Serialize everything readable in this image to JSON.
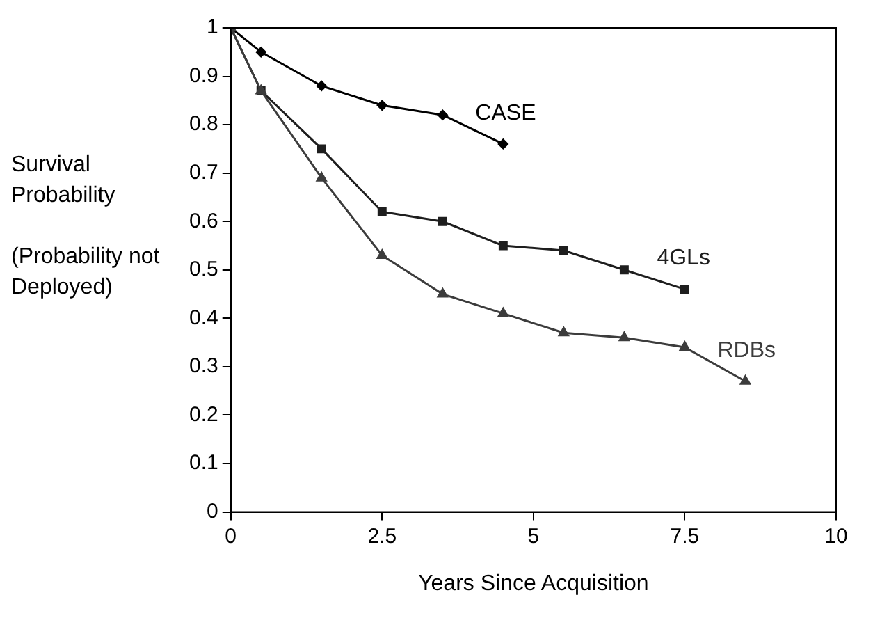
{
  "chart_data": {
    "type": "line",
    "xlabel": "Years Since Acquisition",
    "ylabel": "Survival Probability\n\n(Probability not Deployed)",
    "xlim": [
      0,
      10
    ],
    "xticks": [
      0,
      2.5,
      5,
      7.5,
      10
    ],
    "ylim": [
      0,
      1
    ],
    "yticks": [
      0,
      0.1,
      0.2,
      0.3,
      0.4,
      0.5,
      0.6,
      0.7,
      0.8,
      0.9,
      1
    ],
    "grid": false,
    "legend": false,
    "line_style": "solid",
    "series": [
      {
        "name": "CASE",
        "color": "#000000",
        "marker": "diamond",
        "x": [
          0,
          0.5,
          1.5,
          2.5,
          3.5,
          4.5
        ],
        "values": [
          1,
          0.95,
          0.88,
          0.84,
          0.82,
          0.76
        ]
      },
      {
        "name": "4GLs",
        "color": "#1e1e1e",
        "marker": "square",
        "x": [
          0,
          0.5,
          1.5,
          2.5,
          3.5,
          4.5,
          5.5,
          6.5,
          7.5
        ],
        "values": [
          1,
          0.87,
          0.75,
          0.62,
          0.6,
          0.55,
          0.54,
          0.5,
          0.46
        ]
      },
      {
        "name": "RDBs",
        "color": "#3c3c3c",
        "marker": "triangle",
        "x": [
          0,
          0.5,
          1.5,
          2.5,
          3.5,
          4.5,
          5.5,
          6.5,
          7.5,
          8.5
        ],
        "values": [
          1,
          0.87,
          0.69,
          0.53,
          0.45,
          0.41,
          0.37,
          0.36,
          0.34,
          0.27
        ]
      }
    ]
  }
}
